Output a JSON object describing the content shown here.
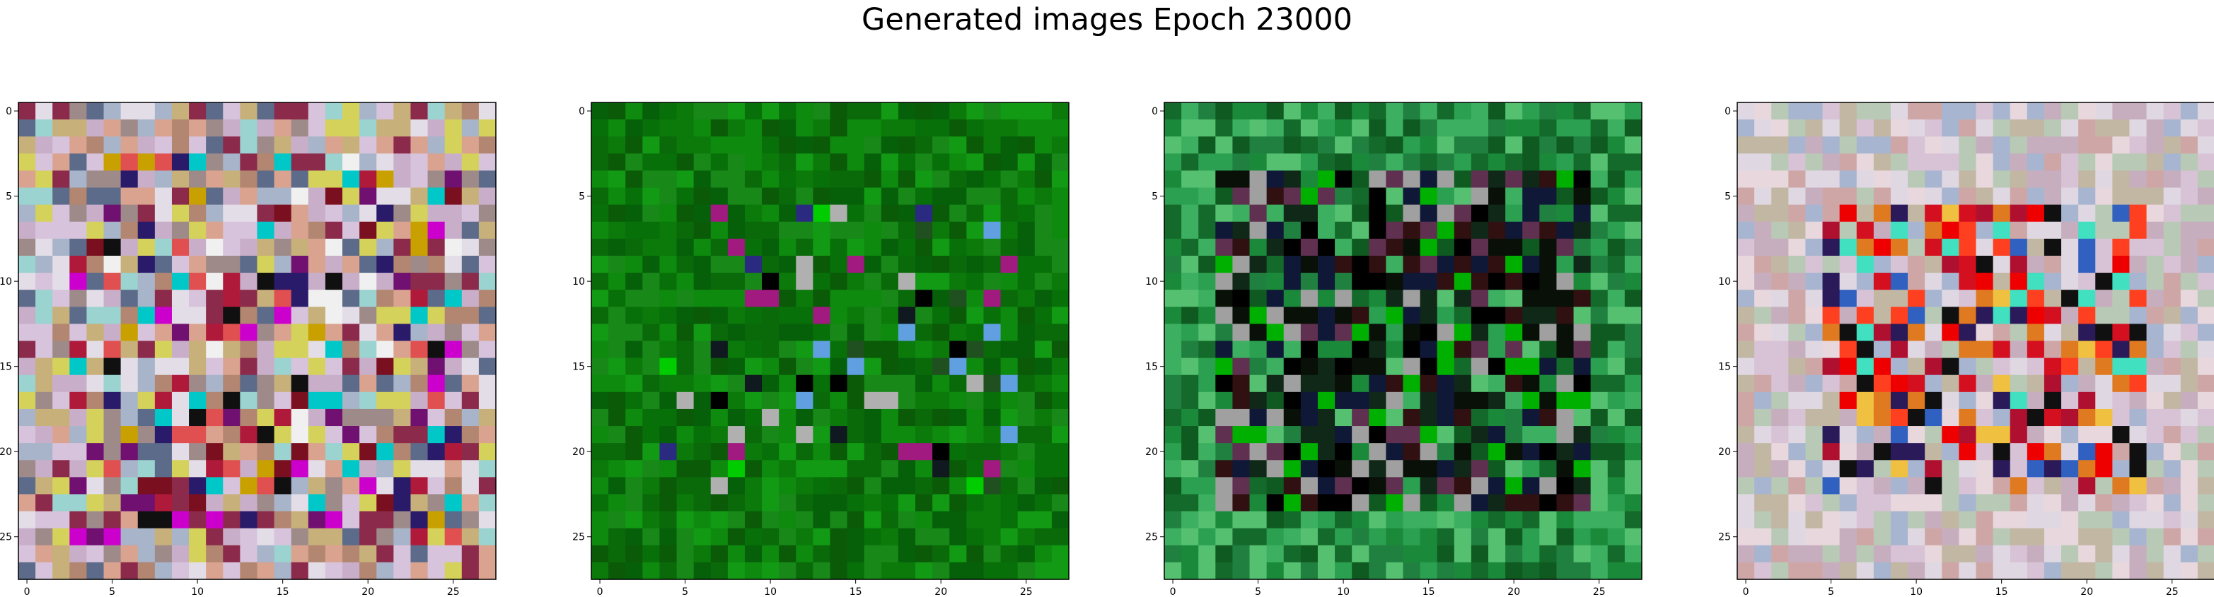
{
  "title": "Generated images Epoch 23000",
  "chart_data": [
    {
      "type": "heatmap",
      "panel": 1,
      "grid_size": [
        28,
        28
      ],
      "xlim": [
        0,
        27
      ],
      "ylim": [
        27,
        0
      ],
      "xticks": [
        0,
        5,
        10,
        15,
        20,
        25
      ],
      "yticks": [
        0,
        5,
        10,
        15,
        20,
        25
      ],
      "palette": [
        "#d7c3dc",
        "#c9aec9",
        "#e3dde7",
        "#a7b4c9",
        "#9f8a8a",
        "#c7b07a",
        "#b28670",
        "#d9a38f",
        "#8c2a4b",
        "#5c6b8a",
        "#9ad3cf",
        "#d4d25a"
      ],
      "accents": [
        "#7a0f1f",
        "#b01a3a",
        "#2a1a6a",
        "#cc00cc",
        "#00c8c8",
        "#c8a000",
        "#101010",
        "#e05050",
        "#701070",
        "#f0f0f0"
      ],
      "accent_density": 0.32,
      "region": [
        3,
        3,
        25,
        25
      ]
    },
    {
      "type": "heatmap",
      "panel": 2,
      "grid_size": [
        28,
        28
      ],
      "xlim": [
        0,
        27
      ],
      "ylim": [
        27,
        0
      ],
      "xticks": [
        0,
        5,
        10,
        15,
        20,
        25
      ],
      "yticks": [
        0,
        5,
        10,
        15,
        20,
        25
      ],
      "palette": [
        "#0a6a0a",
        "#0b7a0b",
        "#0e8a0e",
        "#087008",
        "#06600a",
        "#129a14",
        "#0a5a08",
        "#188818"
      ],
      "accents": [
        "#000000",
        "#101820",
        "#00cc00",
        "#2a2a80",
        "#a01a80",
        "#60a0e0",
        "#b0b0b0",
        "#205020"
      ],
      "accent_density": 0.18,
      "region": [
        4,
        6,
        24,
        22
      ]
    },
    {
      "type": "heatmap",
      "panel": 3,
      "grid_size": [
        28,
        28
      ],
      "xlim": [
        0,
        27
      ],
      "ylim": [
        27,
        0
      ],
      "xticks": [
        0,
        5,
        10,
        15,
        20,
        25
      ],
      "yticks": [
        0,
        5,
        10,
        15,
        20,
        25
      ],
      "palette": [
        "#1a8a3a",
        "#2aa050",
        "#3cb060",
        "#146a2a",
        "#0f5a20",
        "#55c070",
        "#208040"
      ],
      "accents": [
        "#000000",
        "#081008",
        "#102818",
        "#101838",
        "#301010",
        "#00b000",
        "#603050",
        "#a0a0a0"
      ],
      "accent_density": 0.75,
      "region": [
        3,
        4,
        24,
        23
      ]
    },
    {
      "type": "heatmap",
      "panel": 4,
      "grid_size": [
        28,
        28
      ],
      "xlim": [
        0,
        27
      ],
      "ylim": [
        27,
        0
      ],
      "xticks": [
        0,
        5,
        10,
        15,
        20,
        25
      ],
      "yticks": [
        0,
        5,
        10,
        15,
        20,
        25
      ],
      "palette": [
        "#d8c2d6",
        "#c7aebf",
        "#dfd8e2",
        "#c2b7a2",
        "#b8c9b6",
        "#cfa6a6",
        "#a7b5d0",
        "#e8d7dc"
      ],
      "accents": [
        "#ee0000",
        "#d40f20",
        "#ff4020",
        "#e07a20",
        "#b01030",
        "#2a1a5a",
        "#3060c0",
        "#f0c040",
        "#101010",
        "#40e0c0"
      ],
      "accent_density": 0.55,
      "region": [
        5,
        6,
        23,
        22
      ]
    }
  ]
}
